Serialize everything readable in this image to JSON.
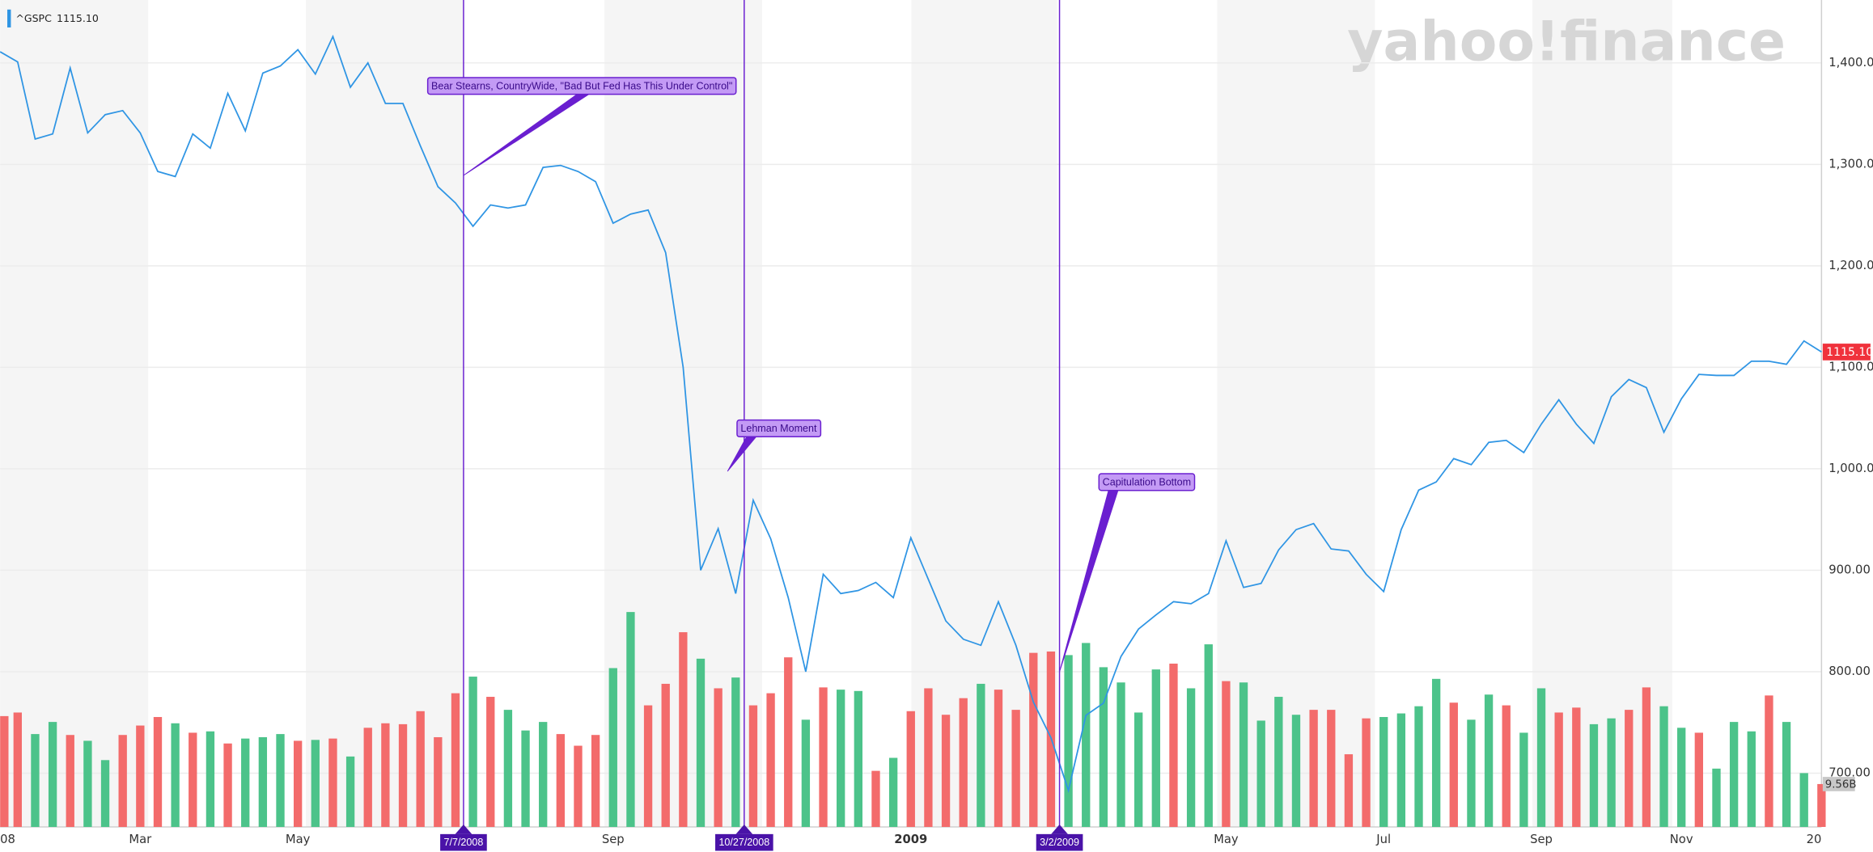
{
  "chart_data": {
    "type": "line",
    "watermark": "yahoo!finance",
    "categories": [
      "08",
      null,
      null,
      null,
      null,
      null,
      null,
      null,
      "Mar",
      null,
      null,
      null,
      null,
      null,
      null,
      null,
      null,
      "May",
      null,
      null,
      null,
      null,
      null,
      null,
      null,
      null,
      null,
      null,
      null,
      null,
      null,
      null,
      null,
      null,
      null,
      "Sep",
      null,
      null,
      null,
      null,
      null,
      null,
      null,
      null,
      null,
      null,
      null,
      null,
      null,
      null,
      null,
      null,
      "2009",
      null,
      null,
      null,
      null,
      null,
      null,
      null,
      null,
      null,
      null,
      null,
      null,
      null,
      null,
      null,
      null,
      null,
      "May",
      null,
      null,
      null,
      null,
      null,
      null,
      null,
      null,
      "Jul",
      null,
      null,
      null,
      null,
      null,
      null,
      null,
      null,
      "Sep",
      null,
      null,
      null,
      null,
      null,
      null,
      null,
      "Nov",
      null,
      null,
      null,
      null,
      null,
      null,
      null,
      "20"
    ],
    "series": [
      {
        "name": "^GSPC",
        "color": "#2f95e4",
        "values": [
          1411,
          1401,
          1325,
          1330,
          1395,
          1331,
          1349,
          1353,
          1331,
          1293,
          1288,
          1330,
          1316,
          1370,
          1333,
          1390,
          1397,
          1413,
          1389,
          1426,
          1376,
          1400,
          1360,
          1360,
          1318,
          1278,
          1262,
          1239,
          1260,
          1257,
          1260,
          1297,
          1299,
          1293,
          1283,
          1242,
          1251,
          1255,
          1213,
          1100,
          900,
          941,
          877,
          969,
          931,
          873,
          800,
          896,
          877,
          880,
          888,
          873,
          932,
          891,
          850,
          832,
          826,
          869,
          826,
          770,
          735,
          683,
          757,
          769,
          815,
          842,
          856,
          869,
          867,
          877,
          929,
          883,
          887,
          920,
          940,
          946,
          921,
          919,
          896,
          879,
          940,
          979,
          987,
          1010,
          1004,
          1026,
          1028,
          1016,
          1044,
          1068,
          1044,
          1025,
          1071,
          1088,
          1080,
          1036,
          1069,
          1093,
          1092,
          1092,
          1106,
          1106,
          1103,
          1126,
          1115.1
        ],
        "value_labels": [
          null,
          null,
          null,
          null,
          null,
          null,
          null,
          null,
          null,
          null,
          null,
          null,
          null,
          null,
          null,
          null,
          null,
          null,
          null,
          null,
          null,
          null,
          null,
          null,
          null,
          null,
          null,
          null,
          null,
          null,
          null,
          null,
          null,
          null,
          null,
          null,
          null,
          null,
          null,
          null,
          null,
          null,
          null,
          null,
          null,
          null,
          null,
          null,
          null,
          null,
          null,
          null,
          null,
          null,
          null,
          null,
          null,
          null,
          null,
          null,
          null,
          null,
          null,
          null,
          null,
          null,
          null,
          null,
          null,
          null,
          null,
          null,
          null,
          null,
          null,
          null,
          null,
          null,
          null,
          null,
          null,
          null,
          null,
          null,
          null,
          null,
          null,
          null,
          null,
          null,
          null,
          null,
          null,
          null,
          null,
          null,
          null,
          null,
          null,
          null,
          null,
          null,
          null,
          null,
          "1115.10"
        ]
      }
    ],
    "last_price_color": "#f0323c",
    "volume": {
      "values": [
        24.7,
        25.5,
        20.7,
        23.4,
        20.5,
        19.2,
        14.9,
        20.5,
        22.6,
        24.5,
        23.1,
        21.0,
        21.3,
        18.6,
        19.7,
        20.0,
        20.7,
        19.2,
        19.4,
        19.7,
        15.7,
        22.1,
        23.1,
        22.9,
        25.8,
        20.0,
        29.8,
        33.5,
        29.0,
        26.1,
        21.5,
        23.4,
        20.7,
        18.1,
        20.5,
        35.4,
        47.9,
        27.1,
        31.9,
        43.4,
        37.5,
        30.9,
        33.3,
        27.1,
        29.8,
        37.8,
        23.9,
        31.1,
        30.6,
        30.3,
        12.5,
        15.4,
        25.8,
        30.9,
        25.0,
        28.7,
        31.9,
        30.6,
        26.1,
        38.8,
        39.1,
        38.3,
        41.0,
        35.6,
        32.2,
        25.5,
        35.1,
        36.4,
        30.9,
        40.7,
        32.5,
        32.2,
        23.7,
        29.0,
        25.0,
        26.1,
        26.1,
        16.2,
        24.2,
        24.5,
        25.3,
        26.9,
        33.0,
        27.7,
        23.9,
        29.5,
        27.1,
        21.0,
        30.9,
        25.5,
        26.6,
        22.9,
        24.2,
        26.1,
        31.1,
        26.9,
        22.1,
        21.0,
        13.0,
        23.4,
        21.3,
        29.3,
        23.4,
        12.0,
        9.56
      ],
      "value_labels": [
        null,
        null,
        null,
        null,
        null,
        null,
        null,
        null,
        null,
        null,
        null,
        null,
        null,
        null,
        null,
        null,
        null,
        null,
        null,
        null,
        null,
        null,
        null,
        null,
        null,
        null,
        null,
        null,
        null,
        null,
        null,
        null,
        null,
        null,
        null,
        null,
        null,
        null,
        null,
        null,
        null,
        null,
        null,
        null,
        null,
        null,
        null,
        null,
        null,
        null,
        null,
        null,
        null,
        null,
        null,
        null,
        null,
        null,
        null,
        null,
        null,
        null,
        null,
        null,
        null,
        null,
        null,
        null,
        null,
        null,
        null,
        null,
        null,
        null,
        null,
        null,
        null,
        null,
        null,
        null,
        null,
        null,
        null,
        null,
        null,
        null,
        null,
        null,
        null,
        null,
        null,
        null,
        null,
        null,
        null,
        null,
        null,
        null,
        null,
        null,
        null,
        null,
        null,
        null,
        "9.56B"
      ],
      "colors": [
        "#f36b6b",
        "#f36b6b",
        "#4cc38a",
        "#4cc38a",
        "#f36b6b",
        "#4cc38a",
        "#4cc38a",
        "#f36b6b",
        "#f36b6b",
        "#f36b6b",
        "#4cc38a",
        "#f36b6b",
        "#4cc38a",
        "#f36b6b",
        "#4cc38a",
        "#4cc38a",
        "#4cc38a",
        "#f36b6b",
        "#4cc38a",
        "#f36b6b",
        "#4cc38a",
        "#f36b6b",
        "#f36b6b",
        "#f36b6b",
        "#f36b6b",
        "#f36b6b",
        "#f36b6b",
        "#4cc38a",
        "#f36b6b",
        "#4cc38a",
        "#4cc38a",
        "#4cc38a",
        "#f36b6b",
        "#f36b6b",
        "#f36b6b",
        "#4cc38a",
        "#4cc38a",
        "#f36b6b",
        "#f36b6b",
        "#f36b6b",
        "#4cc38a",
        "#f36b6b",
        "#4cc38a",
        "#f36b6b",
        "#f36b6b",
        "#f36b6b",
        "#4cc38a",
        "#f36b6b",
        "#4cc38a",
        "#4cc38a",
        "#f36b6b",
        "#4cc38a",
        "#f36b6b",
        "#f36b6b",
        "#f36b6b",
        "#f36b6b",
        "#4cc38a",
        "#f36b6b",
        "#f36b6b",
        "#f36b6b",
        "#f36b6b",
        "#4cc38a",
        "#4cc38a",
        "#4cc38a",
        "#4cc38a",
        "#4cc38a",
        "#4cc38a",
        "#f36b6b",
        "#4cc38a",
        "#4cc38a",
        "#f36b6b",
        "#4cc38a",
        "#4cc38a",
        "#4cc38a",
        "#4cc38a",
        "#f36b6b",
        "#f36b6b",
        "#f36b6b",
        "#f36b6b",
        "#4cc38a",
        "#4cc38a",
        "#4cc38a",
        "#4cc38a",
        "#f36b6b",
        "#4cc38a",
        "#4cc38a",
        "#f36b6b",
        "#4cc38a",
        "#4cc38a",
        "#f36b6b",
        "#f36b6b",
        "#4cc38a",
        "#4cc38a",
        "#f36b6b",
        "#f36b6b",
        "#4cc38a",
        "#4cc38a",
        "#f36b6b",
        "#4cc38a",
        "#4cc38a",
        "#4cc38a",
        "#f36b6b",
        "#4cc38a",
        "#4cc38a",
        "#f36b6b"
      ]
    },
    "ylim": [
      647,
      1462
    ],
    "yticks": [
      {
        "value": 700,
        "label": "700.00"
      },
      {
        "value": 800,
        "label": "800.00"
      },
      {
        "value": 900,
        "label": "900.00"
      },
      {
        "value": 1000,
        "label": "1,000.00"
      },
      {
        "value": 1100,
        "label": "1,100.00"
      },
      {
        "value": 1200,
        "label": "1,200.00"
      },
      {
        "value": 1300,
        "label": "1,300.00"
      },
      {
        "value": 1400,
        "label": "1,400.00"
      }
    ],
    "y2lim": [
      0,
      184.3
    ],
    "grid": true,
    "annotations": [
      {
        "date": "7/7/2008",
        "text": "Bear Stearns, CountryWide, \"Bad But Fed Has This Under Control\""
      },
      {
        "date": "10/27/2008",
        "text": "Lehman Moment"
      },
      {
        "date": "3/2/2009",
        "text": "Capitulation Bottom"
      }
    ],
    "annotation_color": "#6a1fd0"
  }
}
